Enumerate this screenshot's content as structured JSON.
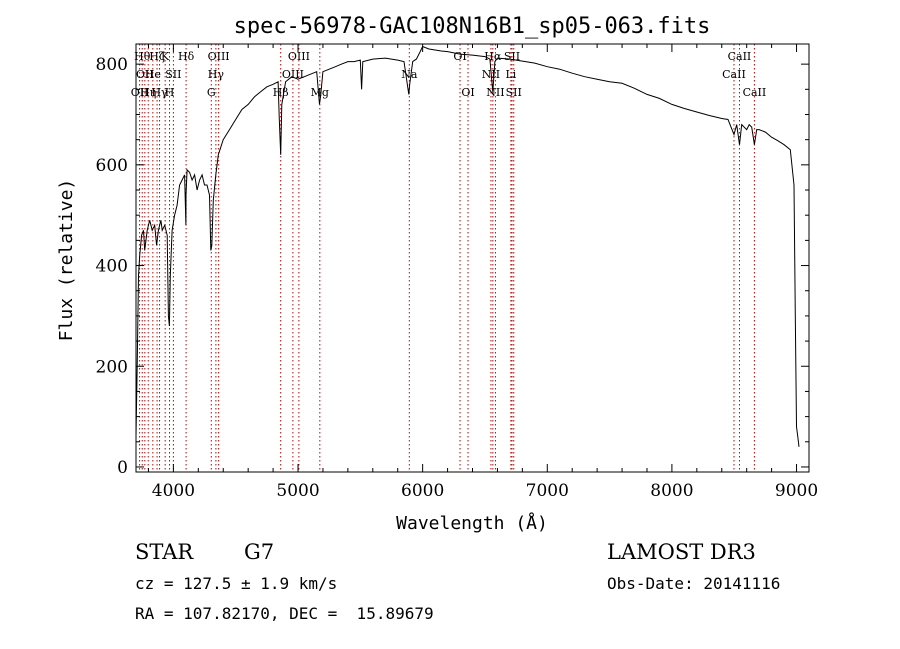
{
  "chart_data": {
    "type": "line",
    "title": "spec-56978-GAC108N16B1_sp05-063.fits",
    "xlabel": "Wavelength (Å)",
    "ylabel": "Flux (relative)",
    "xlim": [
      3700,
      9100
    ],
    "ylim": [
      -10,
      840
    ],
    "xticks": [
      4000,
      5000,
      6000,
      7000,
      8000,
      9000
    ],
    "yticks": [
      0,
      200,
      400,
      600,
      800
    ],
    "series": [
      {
        "name": "flux",
        "x": [
          3700,
          3710,
          3720,
          3730,
          3745,
          3760,
          3770,
          3790,
          3810,
          3830,
          3850,
          3865,
          3880,
          3900,
          3910,
          3930,
          3950,
          3960,
          3968,
          3975,
          3990,
          4010,
          4030,
          4050,
          4070,
          4090,
          4100,
          4101,
          4110,
          4130,
          4150,
          4170,
          4190,
          4210,
          4230,
          4250,
          4270,
          4290,
          4300,
          4308,
          4320,
          4340,
          4360,
          4400,
          4450,
          4500,
          4550,
          4600,
          4650,
          4700,
          4750,
          4800,
          4840,
          4850,
          4861,
          4870,
          4900,
          4950,
          5000,
          5050,
          5100,
          5150,
          5172,
          5183,
          5200,
          5250,
          5300,
          5350,
          5400,
          5450,
          5500,
          5510,
          5520,
          5600,
          5700,
          5800,
          5850,
          5889,
          5896,
          5920,
          5950,
          5980,
          6000,
          6050,
          6100,
          6150,
          6200,
          6300,
          6400,
          6500,
          6540,
          6563,
          6580,
          6600,
          6700,
          6800,
          6900,
          7000,
          7100,
          7200,
          7300,
          7400,
          7500,
          7600,
          7700,
          7800,
          7900,
          8000,
          8100,
          8200,
          8300,
          8400,
          8450,
          8498,
          8520,
          8542,
          8560,
          8600,
          8620,
          8640,
          8662,
          8680,
          8700,
          8750,
          8800,
          8850,
          8900,
          8950,
          8980,
          8990,
          9000,
          9010,
          9020
        ],
        "y": [
          60,
          200,
          380,
          420,
          460,
          470,
          430,
          470,
          490,
          470,
          480,
          440,
          470,
          490,
          470,
          480,
          460,
          300,
          280,
          380,
          470,
          500,
          520,
          560,
          570,
          580,
          480,
          540,
          590,
          585,
          570,
          580,
          550,
          570,
          580,
          560,
          560,
          540,
          430,
          440,
          530,
          580,
          620,
          650,
          670,
          690,
          710,
          720,
          735,
          745,
          755,
          760,
          765,
          690,
          620,
          720,
          765,
          775,
          770,
          775,
          780,
          785,
          720,
          740,
          785,
          790,
          795,
          800,
          805,
          805,
          808,
          750,
          805,
          810,
          812,
          808,
          805,
          740,
          760,
          805,
          810,
          825,
          835,
          830,
          828,
          826,
          825,
          820,
          818,
          815,
          810,
          745,
          805,
          812,
          810,
          806,
          802,
          795,
          790,
          782,
          775,
          770,
          765,
          762,
          752,
          740,
          732,
          720,
          712,
          705,
          698,
          692,
          690,
          660,
          680,
          640,
          680,
          670,
          680,
          675,
          640,
          670,
          670,
          665,
          655,
          648,
          640,
          630,
          560,
          300,
          80,
          60,
          40
        ]
      }
    ],
    "line_markers": [
      {
        "x": 3729,
        "labels": [
          {
            "text": "OII",
            "row": 2
          }
        ]
      },
      {
        "x": 3750,
        "labels": [
          {
            "text": "Hθ",
            "row": 0
          }
        ]
      },
      {
        "x": 3771,
        "labels": [
          {
            "text": "OII",
            "row": 1
          }
        ]
      },
      {
        "x": 3798,
        "labels": [
          {
            "text": "Hη",
            "row": 2
          }
        ]
      },
      {
        "x": 3835,
        "labels": [
          {
            "text": "He",
            "row": 1
          }
        ]
      },
      {
        "x": 3869,
        "labels": [
          {
            "text": "Hζ",
            "row": 0
          }
        ]
      },
      {
        "x": 3889,
        "labels": [
          {
            "text": "Hγ",
            "row": 2
          }
        ]
      },
      {
        "x": 3934,
        "labels": [
          {
            "text": "K",
            "row": 0
          }
        ]
      },
      {
        "x": 3969,
        "labels": [
          {
            "text": "H",
            "row": 2
          }
        ]
      },
      {
        "x": 4000,
        "labels": [
          {
            "text": "SII",
            "row": 1
          }
        ]
      },
      {
        "x": 4102,
        "labels": [
          {
            "text": "Hδ",
            "row": 0
          }
        ]
      },
      {
        "x": 4304,
        "labels": [
          {
            "text": "G",
            "row": 2
          }
        ]
      },
      {
        "x": 4341,
        "labels": [
          {
            "text": "Hγ",
            "row": 1
          }
        ]
      },
      {
        "x": 4363,
        "labels": [
          {
            "text": "OIII",
            "row": 0
          }
        ]
      },
      {
        "x": 4861,
        "labels": [
          {
            "text": "Hβ",
            "row": 2
          }
        ]
      },
      {
        "x": 4959,
        "labels": [
          {
            "text": "OIII",
            "row": 1
          }
        ]
      },
      {
        "x": 5007,
        "labels": [
          {
            "text": "OIII",
            "row": 0
          }
        ]
      },
      {
        "x": 5175,
        "labels": [
          {
            "text": "Mg",
            "row": 2
          }
        ]
      },
      {
        "x": 5893,
        "labels": [
          {
            "text": "Na",
            "row": 1
          }
        ]
      },
      {
        "x": 6300,
        "labels": [
          {
            "text": "OI",
            "row": 0
          }
        ]
      },
      {
        "x": 6364,
        "labels": [
          {
            "text": "OI",
            "row": 2
          }
        ]
      },
      {
        "x": 6548,
        "labels": [
          {
            "text": "NII",
            "row": 1
          }
        ]
      },
      {
        "x": 6563,
        "labels": [
          {
            "text": "Hα",
            "row": 0
          }
        ]
      },
      {
        "x": 6584,
        "labels": [
          {
            "text": "NII",
            "row": 2
          }
        ]
      },
      {
        "x": 6708,
        "labels": [
          {
            "text": "Li",
            "row": 1
          }
        ]
      },
      {
        "x": 6717,
        "labels": [
          {
            "text": "SII",
            "row": 0
          }
        ]
      },
      {
        "x": 6731,
        "labels": [
          {
            "text": "SII",
            "row": 2
          }
        ]
      },
      {
        "x": 8498,
        "labels": [
          {
            "text": "CaII",
            "row": 1
          }
        ]
      },
      {
        "x": 8542,
        "labels": [
          {
            "text": "CaII",
            "row": 0
          }
        ]
      },
      {
        "x": 8662,
        "labels": [
          {
            "text": "CaII",
            "row": 2
          }
        ]
      }
    ],
    "colors": {
      "line": "#000000",
      "marker": "#cc0000",
      "axis": "#000000"
    }
  },
  "info": {
    "object_class": "STAR",
    "subclass": "G7",
    "survey": "LAMOST DR3",
    "redshift": "cz = 127.5 ± 1.9 km/s",
    "obs_date": "Obs-Date: 20141116",
    "coords": "RA = 107.82170, DEC =  15.89679"
  }
}
